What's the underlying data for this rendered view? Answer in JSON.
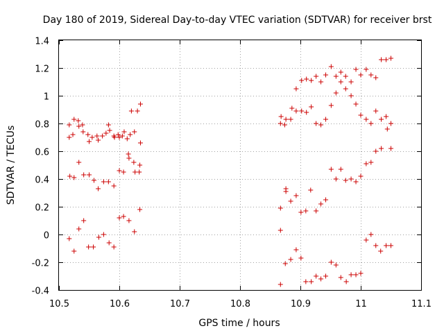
{
  "chart_data": {
    "type": "scatter",
    "title": "Day 180 of 2019, Sidereal Day-to-day VTEC variation (SDTVAR) for receiver brst",
    "xlabel": "GPS time / hours",
    "ylabel": "SDTVAR / TECUs",
    "xlim": [
      10.5,
      11.1
    ],
    "ylim": [
      -0.4,
      1.4
    ],
    "xticks": [
      10.5,
      10.6,
      10.7,
      10.8,
      10.9,
      11.0,
      11.1
    ],
    "xtick_labels": [
      "10.5",
      "10.6",
      "10.7",
      "10.8",
      "10.9",
      "11",
      "11.1"
    ],
    "yticks": [
      -0.4,
      -0.2,
      0,
      0.2,
      0.4,
      0.6,
      0.8,
      1.0,
      1.2,
      1.4
    ],
    "ytick_labels": [
      "-0.4",
      "-0.2",
      "0",
      "0.2",
      "0.4",
      "0.6",
      "0.8",
      "1",
      "1.2",
      "1.4"
    ],
    "grid": true,
    "marker": "+",
    "color": "#cc0000",
    "series": [
      {
        "name": "SDTVAR",
        "points": [
          [
            10.517,
            0.7
          ],
          [
            10.517,
            0.79
          ],
          [
            10.523,
            0.72
          ],
          [
            10.525,
            0.83
          ],
          [
            10.532,
            0.82
          ],
          [
            10.533,
            0.78
          ],
          [
            10.539,
            0.79
          ],
          [
            10.54,
            0.74
          ],
          [
            10.548,
            0.72
          ],
          [
            10.55,
            0.67
          ],
          [
            10.555,
            0.7
          ],
          [
            10.563,
            0.71
          ],
          [
            10.565,
            0.68
          ],
          [
            10.572,
            0.71
          ],
          [
            10.578,
            0.73
          ],
          [
            10.582,
            0.79
          ],
          [
            10.584,
            0.75
          ],
          [
            10.591,
            0.71
          ],
          [
            10.592,
            0.7
          ],
          [
            10.598,
            0.72
          ],
          [
            10.6,
            0.7
          ],
          [
            10.605,
            0.71
          ],
          [
            10.608,
            0.74
          ],
          [
            10.613,
            0.69
          ],
          [
            10.618,
            0.72
          ],
          [
            10.625,
            0.74
          ],
          [
            10.63,
            0.89
          ],
          [
            10.635,
            0.94
          ],
          [
            10.635,
            0.66
          ],
          [
            10.518,
            0.42
          ],
          [
            10.525,
            0.41
          ],
          [
            10.533,
            0.52
          ],
          [
            10.541,
            0.43
          ],
          [
            10.55,
            0.43
          ],
          [
            10.558,
            0.39
          ],
          [
            10.565,
            0.33
          ],
          [
            10.574,
            0.38
          ],
          [
            10.582,
            0.38
          ],
          [
            10.591,
            0.35
          ],
          [
            10.6,
            0.46
          ],
          [
            10.607,
            0.45
          ],
          [
            10.615,
            0.58
          ],
          [
            10.616,
            0.55
          ],
          [
            10.62,
            0.89
          ],
          [
            10.624,
            0.52
          ],
          [
            10.626,
            0.45
          ],
          [
            10.633,
            0.45
          ],
          [
            10.634,
            0.5
          ],
          [
            10.517,
            -0.03
          ],
          [
            10.525,
            -0.12
          ],
          [
            10.533,
            0.04
          ],
          [
            10.541,
            0.1
          ],
          [
            10.549,
            -0.09
          ],
          [
            10.557,
            -0.09
          ],
          [
            10.566,
            -0.02
          ],
          [
            10.574,
            0.0
          ],
          [
            10.583,
            -0.06
          ],
          [
            10.591,
            -0.09
          ],
          [
            10.6,
            0.12
          ],
          [
            10.607,
            0.13
          ],
          [
            10.616,
            0.1
          ],
          [
            10.625,
            0.02
          ],
          [
            10.634,
            0.18
          ],
          [
            10.867,
            0.8
          ],
          [
            10.868,
            0.85
          ],
          [
            10.874,
            0.79
          ],
          [
            10.876,
            0.83
          ],
          [
            10.884,
            0.83
          ],
          [
            10.886,
            0.91
          ],
          [
            10.893,
            0.89
          ],
          [
            10.893,
            1.05
          ],
          [
            10.902,
            1.11
          ],
          [
            10.902,
            0.89
          ],
          [
            10.91,
            0.88
          ],
          [
            10.91,
            1.12
          ],
          [
            10.918,
            1.11
          ],
          [
            10.918,
            0.92
          ],
          [
            10.926,
            1.14
          ],
          [
            10.926,
            0.8
          ],
          [
            10.934,
            1.1
          ],
          [
            10.934,
            0.79
          ],
          [
            10.942,
            1.15
          ],
          [
            10.942,
            0.83
          ],
          [
            10.951,
            1.21
          ],
          [
            10.951,
            0.93
          ],
          [
            10.959,
            1.14
          ],
          [
            10.959,
            1.02
          ],
          [
            10.967,
            1.17
          ],
          [
            10.967,
            1.1
          ],
          [
            10.975,
            1.14
          ],
          [
            10.975,
            1.05
          ],
          [
            10.984,
            1.1
          ],
          [
            10.984,
            1.0
          ],
          [
            10.992,
            1.19
          ],
          [
            10.992,
            0.94
          ],
          [
            11.0,
            1.15
          ],
          [
            11.0,
            0.86
          ],
          [
            11.009,
            1.19
          ],
          [
            11.009,
            0.83
          ],
          [
            11.017,
            1.15
          ],
          [
            11.017,
            0.8
          ],
          [
            11.025,
            1.13
          ],
          [
            11.025,
            0.89
          ],
          [
            11.034,
            1.26
          ],
          [
            11.034,
            0.83
          ],
          [
            11.042,
            1.26
          ],
          [
            11.042,
            0.85
          ],
          [
            11.044,
            0.76
          ],
          [
            11.05,
            1.27
          ],
          [
            11.05,
            0.8
          ],
          [
            10.867,
            0.19
          ],
          [
            10.876,
            0.31
          ],
          [
            10.876,
            0.33
          ],
          [
            10.884,
            0.24
          ],
          [
            10.893,
            0.28
          ],
          [
            10.901,
            0.16
          ],
          [
            10.909,
            0.17
          ],
          [
            10.917,
            0.32
          ],
          [
            10.926,
            0.17
          ],
          [
            10.934,
            0.22
          ],
          [
            10.942,
            0.25
          ],
          [
            10.951,
            0.47
          ],
          [
            10.959,
            0.4
          ],
          [
            10.967,
            0.47
          ],
          [
            10.975,
            0.39
          ],
          [
            10.984,
            0.4
          ],
          [
            10.992,
            0.38
          ],
          [
            11.0,
            0.42
          ],
          [
            11.009,
            0.51
          ],
          [
            11.017,
            0.52
          ],
          [
            11.025,
            0.6
          ],
          [
            11.034,
            0.62
          ],
          [
            11.05,
            0.62
          ],
          [
            10.867,
            0.03
          ],
          [
            10.875,
            -0.21
          ],
          [
            10.884,
            -0.18
          ],
          [
            10.893,
            -0.11
          ],
          [
            10.901,
            -0.17
          ],
          [
            10.867,
            -0.36
          ],
          [
            10.909,
            -0.34
          ],
          [
            10.918,
            -0.34
          ],
          [
            10.926,
            -0.3
          ],
          [
            10.934,
            -0.32
          ],
          [
            10.942,
            -0.3
          ],
          [
            10.951,
            -0.2
          ],
          [
            10.959,
            -0.22
          ],
          [
            10.967,
            -0.31
          ],
          [
            10.976,
            -0.34
          ],
          [
            10.984,
            -0.29
          ],
          [
            10.992,
            -0.29
          ],
          [
            11.0,
            -0.28
          ],
          [
            11.009,
            -0.04
          ],
          [
            11.017,
            0.0
          ],
          [
            11.025,
            -0.08
          ],
          [
            11.033,
            -0.12
          ],
          [
            11.042,
            -0.08
          ],
          [
            11.05,
            -0.08
          ]
        ]
      }
    ]
  }
}
